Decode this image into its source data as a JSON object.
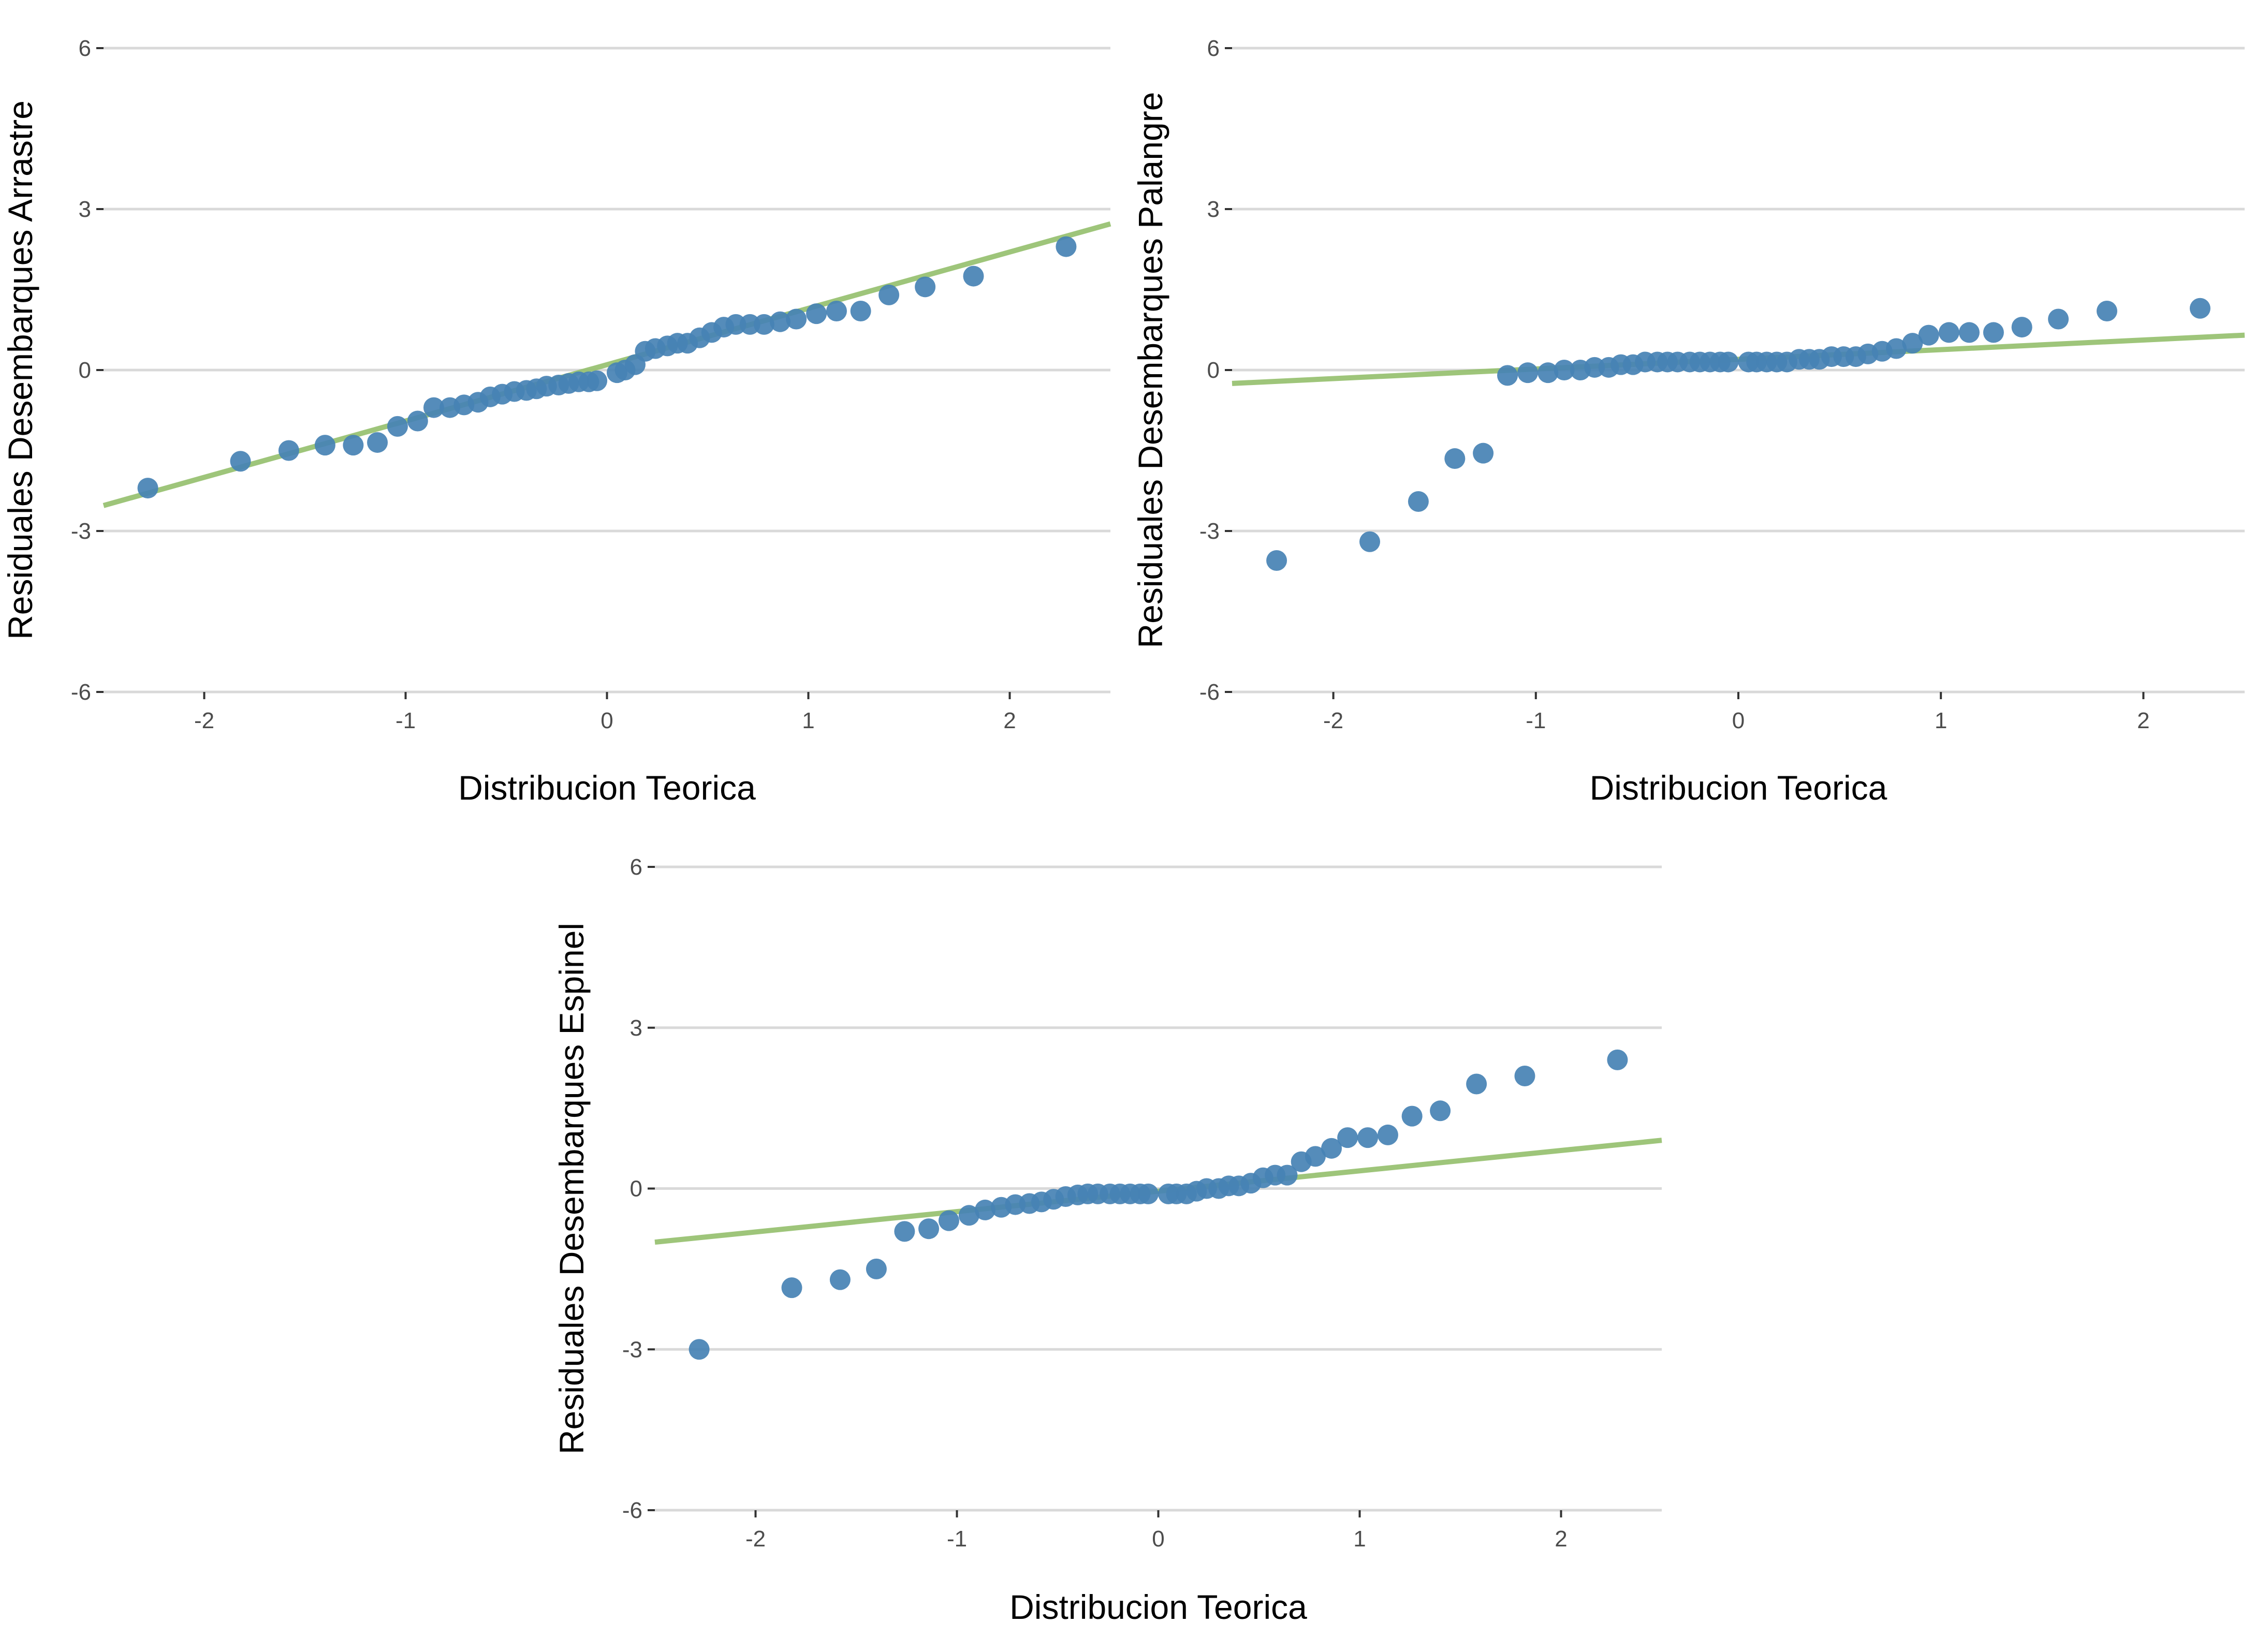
{
  "colors": {
    "points": "#4682B4",
    "reference_line": "#93BF6B",
    "grid": "#D9D9D9",
    "tick_text": "#4D4D4D"
  },
  "chart_data": [
    {
      "type": "scatter",
      "title": "",
      "xlabel": "Distribucion Teorica",
      "ylabel": "Residuales Desembarques Arrastre",
      "xlim": [
        -2.5,
        2.5
      ],
      "ylim": [
        -6,
        6
      ],
      "xticks": [
        "-2",
        "-1",
        "0",
        "1",
        "2"
      ],
      "yticks": [
        "-6",
        "-3",
        "0",
        "3",
        "6"
      ],
      "grid": "horizontal",
      "reference_line": {
        "intercept": 0.1,
        "slope": 1.05
      },
      "x": [
        -2.28,
        -1.82,
        -1.58,
        -1.4,
        -1.26,
        -1.14,
        -1.04,
        -0.94,
        -0.86,
        -0.78,
        -0.71,
        -0.64,
        -0.58,
        -0.52,
        -0.46,
        -0.4,
        -0.35,
        -0.3,
        -0.24,
        -0.19,
        -0.14,
        -0.09,
        -0.05,
        0.05,
        0.09,
        0.14,
        0.19,
        0.24,
        0.3,
        0.35,
        0.4,
        0.46,
        0.52,
        0.58,
        0.64,
        0.71,
        0.78,
        0.86,
        0.94,
        1.04,
        1.14,
        1.26,
        1.4,
        1.58,
        1.82,
        2.28
      ],
      "y": [
        -2.2,
        -1.7,
        -1.5,
        -1.4,
        -1.4,
        -1.35,
        -1.05,
        -0.95,
        -0.7,
        -0.7,
        -0.65,
        -0.6,
        -0.5,
        -0.45,
        -0.4,
        -0.38,
        -0.35,
        -0.3,
        -0.28,
        -0.25,
        -0.22,
        -0.22,
        -0.2,
        -0.05,
        0.0,
        0.1,
        0.35,
        0.4,
        0.45,
        0.5,
        0.5,
        0.6,
        0.7,
        0.8,
        0.85,
        0.85,
        0.85,
        0.9,
        0.95,
        1.05,
        1.1,
        1.1,
        1.4,
        1.55,
        1.75,
        2.3
      ]
    },
    {
      "type": "scatter",
      "title": "",
      "xlabel": "Distribucion Teorica",
      "ylabel": "Residuales Desembarques Palangre",
      "xlim": [
        -2.5,
        2.5
      ],
      "ylim": [
        -6,
        6
      ],
      "xticks": [
        "-2",
        "-1",
        "0",
        "1",
        "2"
      ],
      "yticks": [
        "-6",
        "-3",
        "0",
        "3",
        "6"
      ],
      "grid": "horizontal",
      "reference_line": {
        "intercept": 0.2,
        "slope": 0.18
      },
      "x": [
        -2.28,
        -1.82,
        -1.58,
        -1.4,
        -1.26,
        -1.14,
        -1.04,
        -0.94,
        -0.86,
        -0.78,
        -0.71,
        -0.64,
        -0.58,
        -0.52,
        -0.46,
        -0.4,
        -0.35,
        -0.3,
        -0.24,
        -0.19,
        -0.14,
        -0.09,
        -0.05,
        0.05,
        0.09,
        0.14,
        0.19,
        0.24,
        0.3,
        0.35,
        0.4,
        0.46,
        0.52,
        0.58,
        0.64,
        0.71,
        0.78,
        0.86,
        0.94,
        1.04,
        1.14,
        1.26,
        1.4,
        1.58,
        1.82,
        2.28
      ],
      "y": [
        -3.55,
        -3.2,
        -2.45,
        -1.65,
        -1.55,
        -0.1,
        -0.05,
        -0.05,
        0.0,
        0.0,
        0.05,
        0.05,
        0.1,
        0.1,
        0.15,
        0.15,
        0.15,
        0.15,
        0.15,
        0.15,
        0.15,
        0.15,
        0.15,
        0.15,
        0.15,
        0.15,
        0.15,
        0.15,
        0.2,
        0.2,
        0.2,
        0.25,
        0.25,
        0.25,
        0.3,
        0.35,
        0.4,
        0.5,
        0.65,
        0.7,
        0.7,
        0.7,
        0.8,
        0.95,
        1.1,
        1.15
      ]
    },
    {
      "type": "scatter",
      "title": "",
      "xlabel": "Distribucion Teorica",
      "ylabel": "Residuales Desembarques Espinel",
      "xlim": [
        -2.5,
        2.5
      ],
      "ylim": [
        -6,
        6
      ],
      "xticks": [
        "-2",
        "-1",
        "0",
        "1",
        "2"
      ],
      "yticks": [
        "-6",
        "-3",
        "0",
        "3",
        "6"
      ],
      "grid": "horizontal",
      "reference_line": {
        "intercept": -0.05,
        "slope": 0.38
      },
      "x": [
        -2.28,
        -1.82,
        -1.58,
        -1.4,
        -1.26,
        -1.14,
        -1.04,
        -0.94,
        -0.86,
        -0.78,
        -0.71,
        -0.64,
        -0.58,
        -0.52,
        -0.46,
        -0.4,
        -0.35,
        -0.3,
        -0.24,
        -0.19,
        -0.14,
        -0.09,
        -0.05,
        0.05,
        0.09,
        0.14,
        0.19,
        0.24,
        0.3,
        0.35,
        0.4,
        0.46,
        0.52,
        0.58,
        0.64,
        0.71,
        0.78,
        0.86,
        0.94,
        1.04,
        1.14,
        1.26,
        1.4,
        1.58,
        1.82,
        2.28
      ],
      "y": [
        -3.0,
        -1.85,
        -1.7,
        -1.5,
        -0.8,
        -0.75,
        -0.6,
        -0.5,
        -0.4,
        -0.35,
        -0.3,
        -0.28,
        -0.25,
        -0.2,
        -0.15,
        -0.12,
        -0.1,
        -0.1,
        -0.1,
        -0.1,
        -0.1,
        -0.1,
        -0.1,
        -0.1,
        -0.1,
        -0.1,
        -0.05,
        0.0,
        0.0,
        0.05,
        0.05,
        0.1,
        0.2,
        0.25,
        0.25,
        0.5,
        0.6,
        0.75,
        0.95,
        0.95,
        1.0,
        1.35,
        1.45,
        1.95,
        2.1,
        2.4
      ]
    }
  ]
}
